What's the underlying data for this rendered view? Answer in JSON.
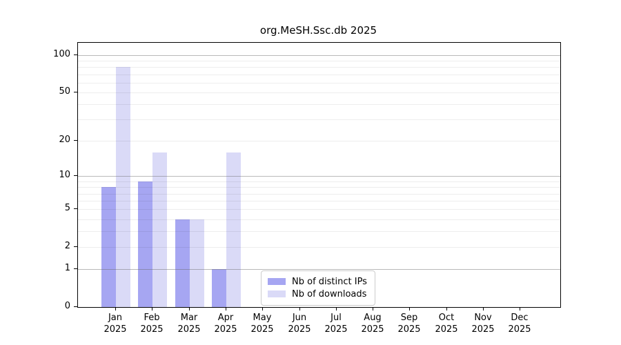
{
  "chart_data": {
    "type": "bar",
    "title": "org.MeSH.Ssc.db 2025",
    "categories": [
      "Jan",
      "Feb",
      "Mar",
      "Apr",
      "May",
      "Jun",
      "Jul",
      "Aug",
      "Sep",
      "Oct",
      "Nov",
      "Dec"
    ],
    "year": "2025",
    "series": [
      {
        "name": "Nb of distinct IPs",
        "color": "#a6a6f2",
        "values": [
          8,
          9,
          4,
          1,
          0,
          0,
          0,
          0,
          0,
          0,
          0,
          0
        ]
      },
      {
        "name": "Nb of downloads",
        "color": "#dadaf7",
        "values": [
          80,
          16,
          4,
          16,
          0,
          0,
          0,
          0,
          0,
          0,
          0,
          0
        ]
      }
    ],
    "yscale": "log1p",
    "ylim": [
      0,
      127
    ],
    "ytick_values": [
      100,
      50,
      20,
      10,
      5,
      2,
      1,
      0
    ],
    "major_gridlines": [
      1,
      10,
      100
    ],
    "minor_gridlines": [
      2,
      3,
      4,
      5,
      6,
      7,
      8,
      9,
      20,
      30,
      40,
      50,
      60,
      70,
      80,
      90
    ],
    "grid_on": true,
    "legend_position": "lower-center-inside"
  }
}
